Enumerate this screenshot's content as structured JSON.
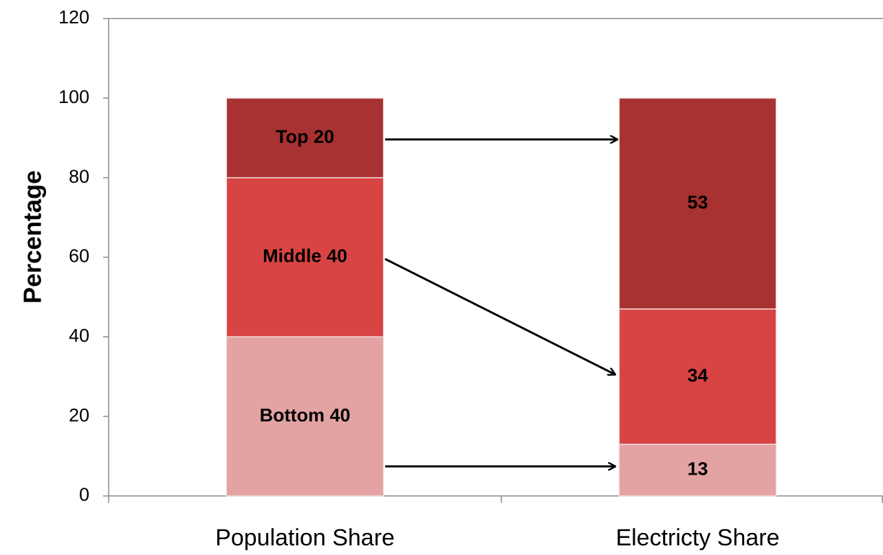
{
  "chart_data": {
    "type": "stacked-bar",
    "y_label": "Percentage",
    "categories": [
      "Population Share",
      "Electricty Share"
    ],
    "series": [
      {
        "color": "#e3a3a3",
        "values": [
          40,
          13
        ],
        "value_labels": [
          "Bottom 40",
          "13"
        ]
      },
      {
        "color": "#d84444",
        "values": [
          40,
          34
        ],
        "value_labels": [
          "Middle 40",
          "34"
        ]
      },
      {
        "color": "#a83131",
        "values": [
          20,
          53
        ],
        "value_labels": [
          "Top 20",
          "53"
        ]
      }
    ],
    "ylim": [
      0,
      120
    ],
    "yticks": [
      0,
      20,
      40,
      60,
      80,
      100,
      120
    ],
    "grid": false
  }
}
